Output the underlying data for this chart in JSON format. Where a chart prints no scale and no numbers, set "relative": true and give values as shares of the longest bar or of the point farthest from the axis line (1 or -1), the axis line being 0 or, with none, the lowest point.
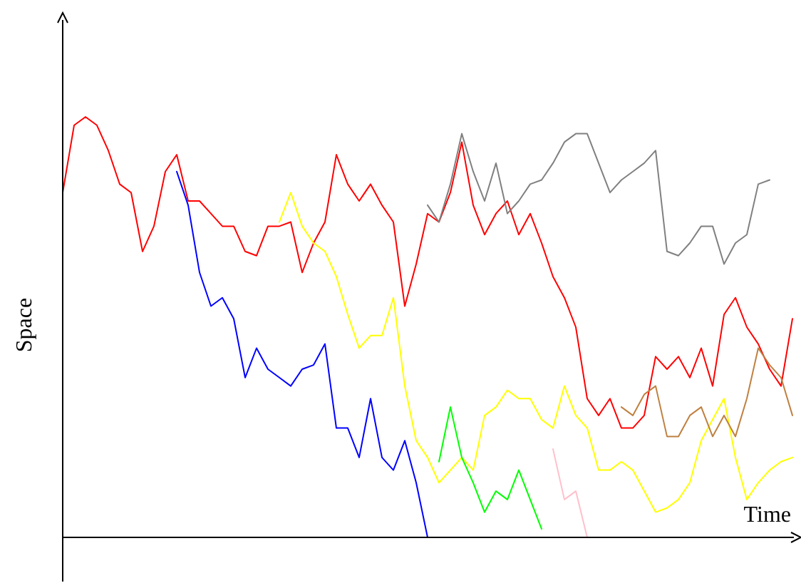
{
  "chart_data": {
    "type": "line",
    "relative": true,
    "xlabel": "Time",
    "ylabel": "Space",
    "categories": [
      null,
      null,
      null,
      null,
      null,
      null,
      null,
      null,
      null,
      null,
      null,
      null,
      null,
      null,
      null,
      null,
      null,
      null,
      null,
      null,
      null,
      null,
      null,
      null,
      null,
      null,
      null,
      null,
      null,
      null,
      null,
      null,
      null,
      null,
      null,
      null,
      null,
      null,
      null,
      null,
      null,
      null,
      null,
      null,
      null,
      null,
      null,
      null,
      null,
      null,
      null,
      null,
      null,
      null,
      null,
      null,
      null,
      null,
      null,
      null,
      null,
      null,
      null,
      null,
      null
    ],
    "series": [
      {
        "color": "#ff0000",
        "values": [
          0.82,
          0.98,
          1.0,
          0.98,
          0.92,
          0.84,
          0.82,
          0.68,
          0.74,
          0.87,
          0.91,
          0.8,
          0.8,
          0.77,
          0.74,
          0.74,
          0.68,
          0.67,
          0.74,
          0.74,
          0.75,
          0.63,
          0.7,
          0.75,
          0.91,
          0.84,
          0.8,
          0.84,
          0.79,
          0.75,
          0.55,
          0.65,
          0.77,
          0.75,
          0.82,
          0.94,
          0.79,
          0.72,
          0.77,
          0.8,
          0.72,
          0.77,
          0.7,
          0.62,
          0.57,
          0.5,
          0.33,
          0.29,
          0.33,
          0.26,
          0.26,
          0.29,
          0.43,
          0.4,
          0.43,
          0.38,
          0.45,
          0.36,
          0.53,
          0.57,
          0.5,
          0.46,
          0.4,
          0.36,
          0.52
        ]
      },
      {
        "color": "#0000ff",
        "values": [
          null,
          null,
          null,
          null,
          null,
          null,
          null,
          null,
          null,
          null,
          0.87,
          0.79,
          0.63,
          0.55,
          0.57,
          0.52,
          0.38,
          0.45,
          0.4,
          0.38,
          0.36,
          0.4,
          0.41,
          0.46,
          0.26,
          0.26,
          0.19,
          0.33,
          0.19,
          0.16,
          0.23,
          0.13,
          0,
          null,
          null,
          null,
          null,
          null,
          null,
          null,
          null,
          null,
          null,
          null,
          null,
          null,
          null,
          null,
          null,
          null,
          null,
          null,
          null,
          null,
          null,
          null,
          null,
          null,
          null,
          null,
          null,
          null,
          null,
          null,
          null
        ]
      },
      {
        "color": "#ffff00",
        "values": [
          null,
          null,
          null,
          null,
          null,
          null,
          null,
          null,
          null,
          null,
          null,
          null,
          null,
          null,
          null,
          null,
          null,
          null,
          null,
          0.75,
          0.82,
          0.74,
          0.7,
          0.68,
          0.62,
          0.53,
          0.45,
          0.48,
          0.48,
          0.57,
          0.36,
          0.23,
          0.19,
          0.13,
          0.16,
          0.19,
          0.16,
          0.29,
          0.31,
          0.35,
          0.33,
          0.33,
          0.28,
          0.26,
          0.36,
          0.29,
          0.26,
          0.16,
          0.16,
          0.18,
          0.16,
          0.11,
          0.06,
          0.07,
          0.09,
          0.13,
          0.23,
          0.28,
          0.33,
          0.19,
          0.09,
          0.13,
          0.16,
          0.18,
          0.19
        ]
      },
      {
        "color": "#00ff00",
        "values": [
          null,
          null,
          null,
          null,
          null,
          null,
          null,
          null,
          null,
          null,
          null,
          null,
          null,
          null,
          null,
          null,
          null,
          null,
          null,
          null,
          null,
          null,
          null,
          null,
          null,
          null,
          null,
          null,
          null,
          null,
          null,
          null,
          null,
          0.18,
          0.31,
          0.19,
          0.13,
          0.06,
          0.11,
          0.09,
          0.16,
          0.09,
          0.02,
          null,
          null,
          null,
          null,
          null,
          null,
          null,
          null,
          null,
          null,
          null,
          null,
          null,
          null,
          null,
          null,
          null,
          null,
          null,
          null,
          null,
          null
        ]
      },
      {
        "color": "#ffc0cb",
        "values": [
          null,
          null,
          null,
          null,
          null,
          null,
          null,
          null,
          null,
          null,
          null,
          null,
          null,
          null,
          null,
          null,
          null,
          null,
          null,
          null,
          null,
          null,
          null,
          null,
          null,
          null,
          null,
          null,
          null,
          null,
          null,
          null,
          null,
          null,
          null,
          null,
          null,
          null,
          null,
          null,
          null,
          null,
          null,
          0.21,
          0.09,
          0.11,
          0,
          null,
          null,
          null,
          null,
          null,
          null,
          null,
          null,
          null,
          null,
          null,
          null,
          null,
          null,
          null,
          null,
          null,
          null
        ]
      },
      {
        "color": "#808080",
        "values": [
          null,
          null,
          null,
          null,
          null,
          null,
          null,
          null,
          null,
          null,
          null,
          null,
          null,
          null,
          null,
          null,
          null,
          null,
          null,
          null,
          null,
          null,
          null,
          null,
          null,
          null,
          null,
          null,
          null,
          null,
          null,
          null,
          0.79,
          0.75,
          0.84,
          0.96,
          0.87,
          0.8,
          0.89,
          0.77,
          0.8,
          0.84,
          0.85,
          0.89,
          0.94,
          0.96,
          0.96,
          0.89,
          0.82,
          0.85,
          0.87,
          0.89,
          0.92,
          0.68,
          0.67,
          0.7,
          0.74,
          0.74,
          0.65,
          0.7,
          0.72,
          0.84,
          0.85,
          null,
          null
        ]
      },
      {
        "color": "#bf8040",
        "values": [
          null,
          null,
          null,
          null,
          null,
          null,
          null,
          null,
          null,
          null,
          null,
          null,
          null,
          null,
          null,
          null,
          null,
          null,
          null,
          null,
          null,
          null,
          null,
          null,
          null,
          null,
          null,
          null,
          null,
          null,
          null,
          null,
          null,
          null,
          null,
          null,
          null,
          null,
          null,
          null,
          null,
          null,
          null,
          null,
          null,
          null,
          null,
          null,
          null,
          0.31,
          0.29,
          0.34,
          0.36,
          0.24,
          0.24,
          0.29,
          0.31,
          0.24,
          0.29,
          0.24,
          0.33,
          0.45,
          0.41,
          0.38,
          0.29
        ]
      }
    ]
  }
}
